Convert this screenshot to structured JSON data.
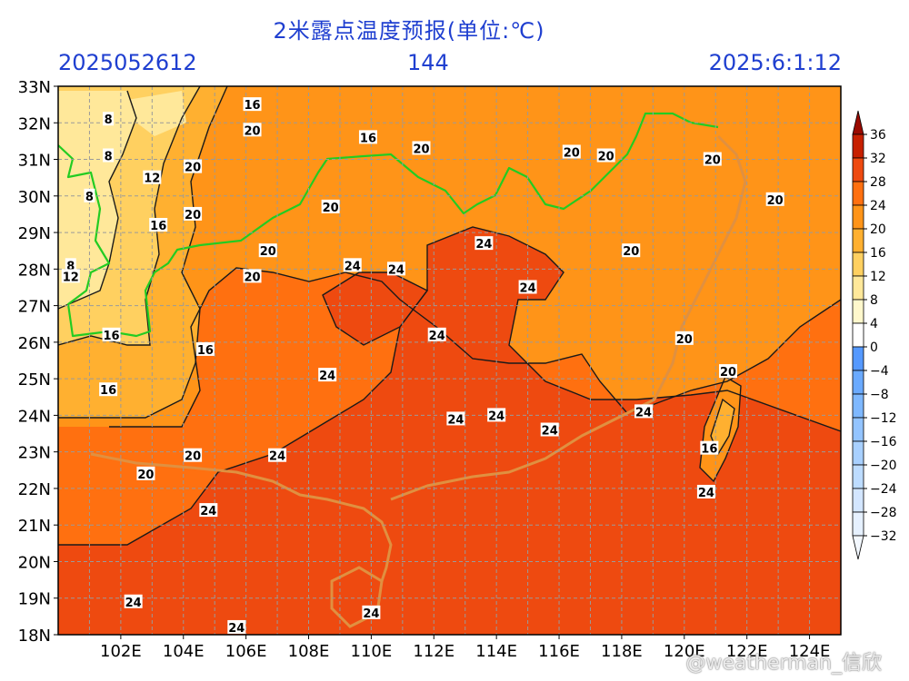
{
  "header": {
    "title": "2米露点温度预报(单位:℃)",
    "init_time": "2025052612",
    "lead_hours": "144",
    "valid_time": "2025:6:1:12"
  },
  "map": {
    "lat_labels": [
      "33N",
      "32N",
      "31N",
      "30N",
      "29N",
      "28N",
      "27N",
      "26N",
      "25N",
      "24N",
      "23N",
      "22N",
      "21N",
      "20N",
      "19N",
      "18N"
    ],
    "lon_labels": [
      "102E",
      "104E",
      "106E",
      "108E",
      "110E",
      "112E",
      "114E",
      "116E",
      "118E",
      "120E",
      "122E",
      "124E"
    ],
    "lat_range": [
      18,
      33
    ],
    "lon_range": [
      100,
      125
    ],
    "contour_labels": [
      {
        "text": "8",
        "lon": 101.6,
        "lat": 32.1
      },
      {
        "text": "8",
        "lon": 101.6,
        "lat": 31.1
      },
      {
        "text": "8",
        "lon": 101.0,
        "lat": 30.0
      },
      {
        "text": "8",
        "lon": 100.4,
        "lat": 28.1
      },
      {
        "text": "12",
        "lon": 103.0,
        "lat": 30.5
      },
      {
        "text": "12",
        "lon": 100.4,
        "lat": 27.8
      },
      {
        "text": "16",
        "lon": 106.2,
        "lat": 32.5
      },
      {
        "text": "16",
        "lon": 109.9,
        "lat": 31.6
      },
      {
        "text": "16",
        "lon": 103.2,
        "lat": 29.2
      },
      {
        "text": "16",
        "lon": 101.7,
        "lat": 26.2
      },
      {
        "text": "16",
        "lon": 104.7,
        "lat": 25.8
      },
      {
        "text": "16",
        "lon": 101.6,
        "lat": 24.7
      },
      {
        "text": "16",
        "lon": 120.8,
        "lat": 23.1
      },
      {
        "text": "20",
        "lon": 106.2,
        "lat": 31.8
      },
      {
        "text": "20",
        "lon": 104.3,
        "lat": 30.8
      },
      {
        "text": "20",
        "lon": 104.3,
        "lat": 29.5
      },
      {
        "text": "20",
        "lon": 111.6,
        "lat": 31.3
      },
      {
        "text": "20",
        "lon": 108.7,
        "lat": 29.7
      },
      {
        "text": "20",
        "lon": 106.7,
        "lat": 28.5
      },
      {
        "text": "20",
        "lon": 106.2,
        "lat": 27.8
      },
      {
        "text": "20",
        "lon": 116.4,
        "lat": 31.2
      },
      {
        "text": "20",
        "lon": 117.5,
        "lat": 31.1
      },
      {
        "text": "20",
        "lon": 120.9,
        "lat": 31.0
      },
      {
        "text": "20",
        "lon": 122.9,
        "lat": 29.9
      },
      {
        "text": "20",
        "lon": 118.3,
        "lat": 28.5
      },
      {
        "text": "20",
        "lon": 120.0,
        "lat": 26.1
      },
      {
        "text": "20",
        "lon": 121.4,
        "lat": 25.2
      },
      {
        "text": "20",
        "lon": 104.3,
        "lat": 22.9
      },
      {
        "text": "20",
        "lon": 102.8,
        "lat": 22.4
      },
      {
        "text": "24",
        "lon": 113.6,
        "lat": 28.7
      },
      {
        "text": "24",
        "lon": 109.4,
        "lat": 28.1
      },
      {
        "text": "24",
        "lon": 110.8,
        "lat": 28.0
      },
      {
        "text": "24",
        "lon": 115.0,
        "lat": 27.5
      },
      {
        "text": "24",
        "lon": 112.1,
        "lat": 26.2
      },
      {
        "text": "24",
        "lon": 108.6,
        "lat": 25.1
      },
      {
        "text": "24",
        "lon": 112.7,
        "lat": 23.9
      },
      {
        "text": "24",
        "lon": 114.0,
        "lat": 24.0
      },
      {
        "text": "24",
        "lon": 115.7,
        "lat": 23.6
      },
      {
        "text": "24",
        "lon": 118.7,
        "lat": 24.1
      },
      {
        "text": "24",
        "lon": 107.0,
        "lat": 22.9
      },
      {
        "text": "24",
        "lon": 104.8,
        "lat": 21.4
      },
      {
        "text": "24",
        "lon": 120.7,
        "lat": 21.9
      },
      {
        "text": "24",
        "lon": 102.4,
        "lat": 18.9
      },
      {
        "text": "24",
        "lon": 105.7,
        "lat": 18.2
      },
      {
        "text": "24",
        "lon": 110.0,
        "lat": 18.6
      }
    ]
  },
  "colorbar": {
    "labels": [
      "36",
      "32",
      "28",
      "24",
      "20",
      "16",
      "12",
      "8",
      "4",
      "0",
      "−4",
      "−8",
      "−12",
      "−16",
      "−20",
      "−24",
      "−28",
      "−32"
    ],
    "colors": [
      "#f3f8ff",
      "#e6f1ff",
      "#d3e6ff",
      "#bddcff",
      "#a8d0ff",
      "#93c4ff",
      "#7eb8ff",
      "#6aaaff",
      "#5599ff",
      "#ffffff",
      "#fff8cc",
      "#ffe89a",
      "#ffd060",
      "#ffb030",
      "#ff9418",
      "#ff7010",
      "#ee4a10",
      "#c72000",
      "#9a0a00"
    ]
  },
  "watermark": "@weatherman_信欣"
}
